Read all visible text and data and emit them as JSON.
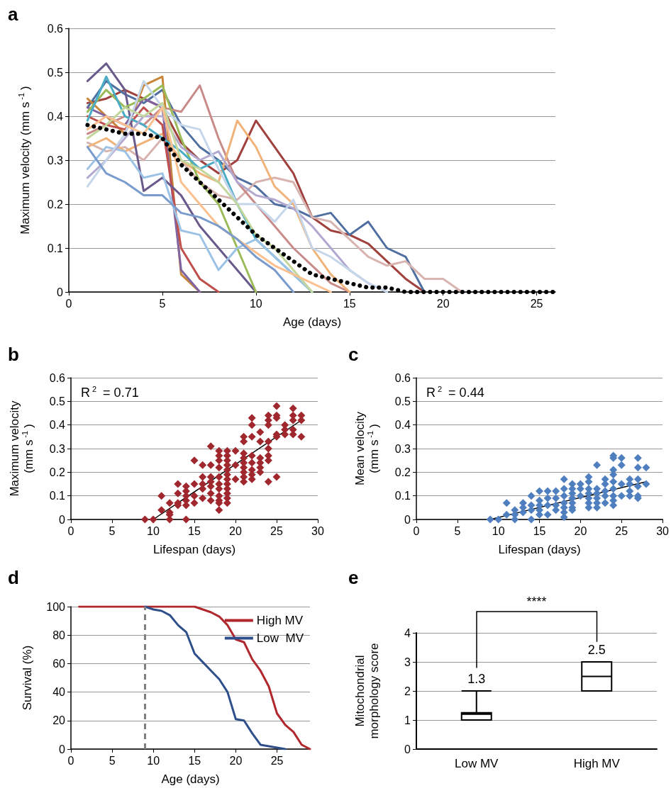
{
  "chart_data": [
    {
      "type": "line",
      "title": "a",
      "xlabel": "Age (days)",
      "ylabel": "Maximum velocity (mm s$^{-1}$)",
      "x": [
        1,
        2,
        3,
        4,
        5,
        6,
        7,
        8,
        9,
        10,
        11,
        12,
        13,
        14,
        15,
        16,
        17,
        18,
        19,
        20,
        21,
        22,
        23,
        24,
        25,
        26
      ],
      "xlim": [
        0,
        26
      ],
      "xticks": [
        0,
        5,
        10,
        15,
        20,
        25
      ],
      "ylim": [
        0,
        0.6
      ],
      "yticks": [
        0,
        0.1,
        0.2,
        0.3,
        0.4,
        0.5,
        0.6
      ],
      "grid": "y",
      "marker": "none",
      "line_style": "solid",
      "series": [
        {
          "color": "#a0413e",
          "values": [
            0.43,
            0.44,
            0.46,
            0.44,
            0.42,
            0.34,
            0.3,
            0.27,
            0.3,
            0.39,
            0.33,
            0.27,
            0.17,
            0.14,
            0.13,
            0.11,
            0.07,
            0.03,
            0,
            null,
            null,
            null,
            null,
            null,
            null,
            null
          ]
        },
        {
          "color": "#4f6fa0",
          "values": [
            0.42,
            0.48,
            0.45,
            0.43,
            0.46,
            0.38,
            0.33,
            0.3,
            0.26,
            0.24,
            0.2,
            0.19,
            0.17,
            0.18,
            0.13,
            0.16,
            0.1,
            0.08,
            0,
            null,
            null,
            null,
            null,
            null,
            null,
            null
          ]
        },
        {
          "color": "#d8b4b0",
          "values": [
            0.34,
            0.32,
            0.33,
            0.3,
            0.35,
            0.3,
            0.25,
            0.22,
            0.21,
            0.25,
            0.26,
            0.25,
            0.17,
            0.16,
            0.12,
            0.08,
            0.06,
            0.07,
            0.03,
            0.03,
            0,
            null,
            null,
            null,
            null,
            null
          ]
        },
        {
          "color": "#c98a8a",
          "values": [
            0.36,
            0.38,
            0.4,
            0.38,
            0.42,
            0.41,
            0.47,
            0.35,
            0.25,
            0.2,
            0.15,
            0.1,
            0.06,
            0.02,
            0,
            null,
            null,
            null,
            null,
            null,
            null,
            null,
            null,
            null,
            null,
            null
          ]
        },
        {
          "color": "#f0b47a",
          "values": [
            0.33,
            0.35,
            0.32,
            0.34,
            0.36,
            0.3,
            0.27,
            0.25,
            0.39,
            0.33,
            0.24,
            0.2,
            0.1,
            0.04,
            0,
            null,
            null,
            null,
            null,
            null,
            null,
            null,
            null,
            null,
            null,
            null
          ]
        },
        {
          "color": "#c8863a",
          "values": [
            0.44,
            0.4,
            0.36,
            0.47,
            0.49,
            0.04,
            0,
            null,
            null,
            null,
            null,
            null,
            null,
            null,
            null,
            null,
            null,
            null,
            null,
            null,
            null,
            null,
            null,
            null,
            null,
            null
          ]
        },
        {
          "color": "#8064a2",
          "values": [
            0.42,
            0.4,
            0.38,
            0.44,
            0.42,
            0.05,
            0,
            null,
            null,
            null,
            null,
            null,
            null,
            null,
            null,
            null,
            null,
            null,
            null,
            null,
            null,
            null,
            null,
            null,
            null,
            null
          ]
        },
        {
          "color": "#c0504d",
          "values": [
            0.4,
            0.38,
            0.37,
            0.42,
            0.38,
            0.1,
            0.03,
            0,
            null,
            null,
            null,
            null,
            null,
            null,
            null,
            null,
            null,
            null,
            null,
            null,
            null,
            null,
            null,
            null,
            null,
            null
          ]
        },
        {
          "color": "#6a5a8c",
          "values": [
            0.48,
            0.52,
            0.46,
            0.23,
            0.26,
            0.22,
            0.15,
            0.1,
            0.05,
            0,
            null,
            null,
            null,
            null,
            null,
            null,
            null,
            null,
            null,
            null,
            null,
            null,
            null,
            null,
            null,
            null
          ]
        },
        {
          "color": "#9bbb59",
          "values": [
            0.41,
            0.46,
            0.42,
            0.44,
            0.47,
            0.35,
            0.25,
            0.2,
            0.1,
            0,
            null,
            null,
            null,
            null,
            null,
            null,
            null,
            null,
            null,
            null,
            null,
            null,
            null,
            null,
            null,
            null
          ]
        },
        {
          "color": "#4bacc6",
          "values": [
            0.39,
            0.49,
            0.4,
            0.38,
            0.35,
            0.32,
            0.28,
            0.3,
            0.2,
            0.12,
            0.08,
            0.04,
            0,
            null,
            null,
            null,
            null,
            null,
            null,
            null,
            null,
            null,
            null,
            null,
            null,
            null
          ]
        },
        {
          "color": "#9cc3e5",
          "values": [
            0.28,
            0.33,
            0.32,
            0.26,
            0.27,
            0.14,
            0.13,
            0.05,
            0.1,
            0.12,
            0.08,
            0.04,
            0,
            null,
            null,
            null,
            null,
            null,
            null,
            null,
            null,
            null,
            null,
            null,
            null,
            null
          ]
        },
        {
          "color": "#b3a8cf",
          "values": [
            0.26,
            0.3,
            0.35,
            0.4,
            0.4,
            0.33,
            0.3,
            0.32,
            0.25,
            0.22,
            0.21,
            0.19,
            0.15,
            0.1,
            0.05,
            0.02,
            0,
            null,
            null,
            null,
            null,
            null,
            null,
            null,
            null,
            null
          ]
        },
        {
          "color": "#c6d6ea",
          "values": [
            0.24,
            0.3,
            0.36,
            0.48,
            0.42,
            0.38,
            0.37,
            0.28,
            0.2,
            0.2,
            0.16,
            0.21,
            0.1,
            0.08,
            0.05,
            0.02,
            0,
            null,
            null,
            null,
            null,
            null,
            null,
            null,
            null,
            null
          ]
        },
        {
          "color": "#c3d69b",
          "values": [
            0.35,
            0.38,
            0.42,
            0.4,
            0.43,
            0.3,
            0.28,
            0.25,
            0.2,
            0.13,
            0.1,
            0.05,
            0,
            null,
            null,
            null,
            null,
            null,
            null,
            null,
            null,
            null,
            null,
            null,
            null,
            null
          ]
        },
        {
          "color": "#fac090",
          "values": [
            0.37,
            0.4,
            0.38,
            0.36,
            0.42,
            0.25,
            0.2,
            0.15,
            0.12,
            0.09,
            0.06,
            0.04,
            0.02,
            0,
            null,
            null,
            null,
            null,
            null,
            null,
            null,
            null,
            null,
            null,
            null,
            null
          ]
        },
        {
          "color": "#7a9ccc",
          "values": [
            0.33,
            0.27,
            0.25,
            0.22,
            0.22,
            0.18,
            0.17,
            0.15,
            0.12,
            0.08,
            0.05,
            0,
            null,
            null,
            null,
            null,
            null,
            null,
            null,
            null,
            null,
            null,
            null,
            null,
            null,
            null
          ]
        },
        {
          "color": "#000000",
          "line_style": "dotted",
          "values": [
            0.38,
            0.37,
            0.36,
            0.36,
            0.35,
            0.29,
            0.25,
            0.21,
            0.17,
            0.13,
            0.1,
            0.07,
            0.04,
            0.03,
            0.02,
            0.01,
            0.01,
            0,
            0,
            0,
            0,
            0,
            0,
            0,
            0,
            0
          ]
        }
      ]
    },
    {
      "type": "scatter",
      "title": "b",
      "xlabel": "Lifespan (days)",
      "ylabel": "Maximum velocity (mm s$^{-1}$)",
      "annotations": [
        "R$^{2}$ = 0.71"
      ],
      "xlim": [
        0,
        30
      ],
      "xticks": [
        0,
        5,
        10,
        15,
        20,
        25,
        30
      ],
      "ylim": [
        0,
        0.6
      ],
      "yticks": [
        0,
        0.1,
        0.2,
        0.3,
        0.4,
        0.5,
        0.6
      ],
      "grid": "y",
      "marker": "diamond",
      "series": [
        {
          "color": "#a0272d",
          "x": [
            9,
            10,
            11,
            11,
            12,
            12,
            12,
            12,
            13,
            13,
            13,
            13,
            14,
            14,
            14,
            14,
            14,
            14,
            15,
            15,
            15,
            15,
            16,
            16,
            16,
            16,
            16,
            17,
            17,
            17,
            17,
            17,
            17,
            17,
            18,
            18,
            18,
            18,
            18,
            18,
            18,
            18,
            18,
            18,
            18,
            19,
            19,
            19,
            19,
            19,
            19,
            19,
            19,
            19,
            19,
            19,
            19,
            20,
            20,
            20,
            21,
            21,
            21,
            21,
            21,
            21,
            21,
            21,
            21,
            22,
            22,
            22,
            22,
            22,
            22,
            22,
            22,
            23,
            23,
            23,
            23,
            23,
            23,
            24,
            24,
            24,
            24,
            24,
            24,
            24,
            24,
            25,
            25,
            25,
            25,
            25,
            25,
            26,
            26,
            26,
            27,
            27,
            27,
            27,
            27,
            28,
            28,
            28
          ],
          "values": [
            0,
            0,
            0.1,
            0.04,
            0.07,
            0.03,
            0.02,
            0,
            0.15,
            0.11,
            0.07,
            0.06,
            0.14,
            0.12,
            0.1,
            0.08,
            0.06,
            0,
            0.25,
            0.15,
            0.1,
            0.07,
            0.23,
            0.18,
            0.15,
            0.13,
            0.09,
            0.31,
            0.23,
            0.18,
            0.16,
            0.14,
            0.11,
            0.08,
            0.29,
            0.27,
            0.25,
            0.22,
            0.18,
            0.15,
            0.13,
            0.1,
            0.08,
            0.07,
            0.04,
            0.29,
            0.27,
            0.25,
            0.23,
            0.21,
            0.19,
            0.17,
            0.15,
            0.13,
            0.11,
            0.09,
            0.07,
            0.29,
            0.23,
            0.17,
            0.35,
            0.33,
            0.28,
            0.26,
            0.24,
            0.22,
            0.2,
            0.18,
            0.16,
            0.43,
            0.4,
            0.35,
            0.27,
            0.24,
            0.21,
            0.19,
            0.17,
            0.37,
            0.33,
            0.26,
            0.24,
            0.22,
            0.2,
            0.44,
            0.42,
            0.4,
            0.33,
            0.3,
            0.27,
            0.25,
            0.16,
            0.48,
            0.44,
            0.43,
            0.36,
            0.35,
            0.18,
            0.4,
            0.38,
            0.36,
            0.47,
            0.44,
            0.42,
            0.38,
            0.36,
            0.44,
            0.42,
            0.35
          ]
        },
        {
          "type": "line",
          "color": "#000000",
          "marker": "none",
          "x": [
            10,
            28
          ],
          "values": [
            0,
            0.42
          ]
        }
      ]
    },
    {
      "type": "scatter",
      "title": "c",
      "xlabel": "Lifespan (days)",
      "ylabel": "Mean velocity (mm s$^{-1}$)",
      "annotations": [
        "R$^{2}$ = 0.44"
      ],
      "xlim": [
        0,
        30
      ],
      "xticks": [
        0,
        5,
        10,
        15,
        20,
        25,
        30
      ],
      "ylim": [
        0,
        0.6
      ],
      "yticks": [
        0,
        0.1,
        0.2,
        0.3,
        0.4,
        0.5,
        0.6
      ],
      "grid": "y",
      "marker": "diamond",
      "series": [
        {
          "color": "#4f7fbf",
          "x": [
            9,
            10,
            11,
            11,
            12,
            12,
            12,
            13,
            13,
            13,
            14,
            14,
            14,
            14,
            15,
            15,
            15,
            15,
            15,
            16,
            16,
            16,
            16,
            17,
            17,
            17,
            17,
            18,
            18,
            18,
            18,
            18,
            18,
            18,
            19,
            19,
            19,
            19,
            19,
            19,
            19,
            20,
            20,
            20,
            21,
            21,
            21,
            21,
            21,
            21,
            21,
            22,
            22,
            22,
            22,
            22,
            22,
            23,
            23,
            23,
            23,
            23,
            24,
            24,
            24,
            24,
            24,
            24,
            24,
            24,
            24,
            25,
            25,
            25,
            25,
            26,
            26,
            26,
            26,
            27,
            27,
            27,
            27,
            27,
            27,
            28,
            28
          ],
          "values": [
            0,
            0,
            0.07,
            0.02,
            0.04,
            0.02,
            0,
            0.07,
            0.05,
            0.03,
            0.1,
            0.06,
            0.04,
            0,
            0.12,
            0.08,
            0.06,
            0.04,
            0.02,
            0.12,
            0.09,
            0.06,
            0.02,
            0.12,
            0.09,
            0.06,
            0.04,
            0.17,
            0.13,
            0.1,
            0.07,
            0.05,
            0.03,
            0.01,
            0.15,
            0.13,
            0.11,
            0.09,
            0.07,
            0.05,
            0.04,
            0.15,
            0.13,
            0.1,
            0.18,
            0.16,
            0.13,
            0.11,
            0.09,
            0.07,
            0.05,
            0.23,
            0.13,
            0.11,
            0.09,
            0.07,
            0.05,
            0.17,
            0.15,
            0.12,
            0.1,
            0.07,
            0.27,
            0.26,
            0.21,
            0.19,
            0.16,
            0.13,
            0.1,
            0.08,
            0.06,
            0.26,
            0.23,
            0.15,
            0.1,
            0.17,
            0.15,
            0.12,
            0.1,
            0.26,
            0.22,
            0.17,
            0.14,
            0.1,
            0.09,
            0.22,
            0.15
          ]
        },
        {
          "type": "line",
          "color": "#000000",
          "marker": "none",
          "x": [
            9,
            28
          ],
          "values": [
            0,
            0.16
          ]
        }
      ]
    },
    {
      "type": "line",
      "title": "d",
      "xlabel": "Age (days)",
      "ylabel": "Survival (%)",
      "x": [
        1,
        2,
        3,
        4,
        5,
        6,
        7,
        8,
        9,
        10,
        11,
        12,
        13,
        14,
        15,
        16,
        17,
        18,
        19,
        20,
        21,
        22,
        23,
        24,
        25,
        26,
        27,
        28,
        29
      ],
      "xlim": [
        0,
        29
      ],
      "xticks": [
        0,
        5,
        10,
        15,
        20,
        25
      ],
      "ylim": [
        0,
        100
      ],
      "yticks": [
        0,
        20,
        40,
        60,
        80,
        100
      ],
      "grid": "y",
      "legend": "top right",
      "marker": "none",
      "ref_lines": [
        {
          "axis": "x",
          "value": 9,
          "color": "#808080",
          "line_style": "dashed"
        }
      ],
      "series": [
        {
          "name": "High MV",
          "color": "#b0282e",
          "values": [
            100,
            100,
            100,
            100,
            100,
            100,
            100,
            100,
            100,
            100,
            100,
            100,
            100,
            100,
            100,
            98,
            96,
            93,
            87,
            77,
            75,
            63,
            55,
            44,
            25,
            17,
            12,
            3,
            0
          ]
        },
        {
          "name": "Low  MV",
          "color": "#2e4f8a",
          "values": [
            null,
            null,
            null,
            null,
            null,
            null,
            null,
            null,
            100,
            98,
            97,
            94,
            87,
            82,
            67,
            61,
            55,
            49,
            40,
            21,
            20,
            11,
            3,
            2,
            1,
            0,
            null,
            null,
            null
          ]
        }
      ]
    },
    {
      "type": "box",
      "title": "e",
      "ylabel": "Mitochondrial morphology score",
      "categories": [
        "Low MV",
        "High MV"
      ],
      "ylim": [
        0,
        4
      ],
      "yticks": [
        0,
        1,
        2,
        3,
        4
      ],
      "grid": "y",
      "annotations": [
        "1.3",
        "2.5",
        "****"
      ],
      "boxes": [
        {
          "low": 1,
          "q1": 1,
          "median": 1.2,
          "q3": 1.25,
          "high": 2
        },
        {
          "low": 2,
          "q1": 2,
          "median": 2.5,
          "q3": 3,
          "high": 3
        }
      ]
    }
  ]
}
